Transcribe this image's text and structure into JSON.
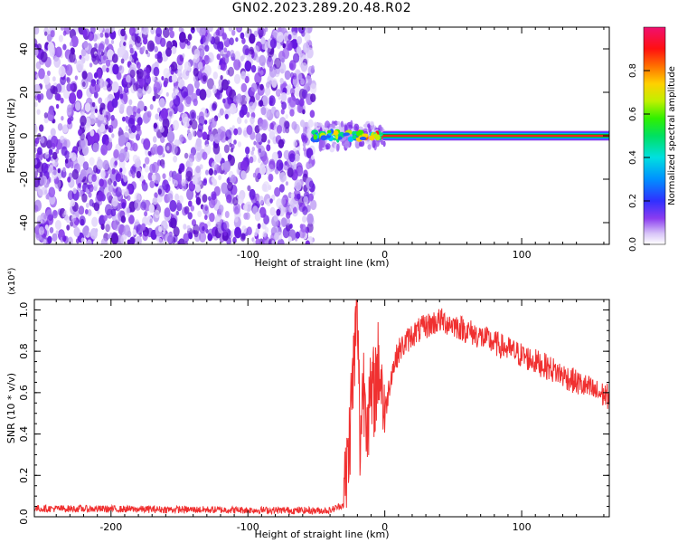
{
  "title": "GN02.2023.289.20.48.R02",
  "colors": {
    "signal_line": "#f03030",
    "axis": "#000000"
  },
  "chart_data": [
    {
      "type": "heatmap",
      "xlabel": "Height of straight line (km)",
      "ylabel": "Frequency (Hz)",
      "xlim": [
        -256,
        164
      ],
      "ylim": [
        -50,
        50
      ],
      "x_ticks": [
        -200,
        -100,
        0,
        100
      ],
      "y_ticks": [
        -40,
        -20,
        0,
        20,
        40
      ],
      "noise_region_x": [
        -256,
        -52
      ],
      "transition_x": [
        -52,
        0
      ],
      "carrier_frequency": 0,
      "colorbar": {
        "label": "Normalized spectral amplitude",
        "range": [
          0,
          1
        ],
        "ticks": [
          "0.0",
          "0.2",
          "0.4",
          "0.6",
          "0.8"
        ],
        "tick_values": [
          0,
          0.2,
          0.4,
          0.6,
          0.8
        ]
      }
    },
    {
      "type": "line",
      "xlabel": "Height of straight line (km)",
      "ylabel": "SNR (10 * v/v)",
      "y_multiplier": "(x10⁴)",
      "xlim": [
        -256,
        164
      ],
      "ylim": [
        0,
        1.05
      ],
      "x_ticks": [
        -200,
        -100,
        0,
        100
      ],
      "y_ticks": [
        "0.0",
        "0.2",
        "0.4",
        "0.6",
        "0.8",
        "1.0"
      ],
      "y_tick_values": [
        0,
        0.2,
        0.4,
        0.6,
        0.8,
        1.0
      ],
      "series": [
        {
          "x": [
            -256,
            -52,
            -40,
            -30,
            -26,
            -24,
            -22,
            -20,
            -18,
            -16,
            -12,
            -8,
            -4,
            0,
            5,
            10,
            20,
            30,
            40,
            50,
            60,
            80,
            100,
            120,
            140,
            155,
            164
          ],
          "y": [
            0.04,
            0.03,
            0.03,
            0.06,
            0.35,
            0.6,
            0.8,
            1.0,
            0.35,
            0.65,
            0.5,
            0.6,
            0.75,
            0.5,
            0.7,
            0.8,
            0.88,
            0.92,
            0.95,
            0.93,
            0.9,
            0.84,
            0.78,
            0.72,
            0.65,
            0.6,
            0.58
          ]
        }
      ]
    }
  ]
}
